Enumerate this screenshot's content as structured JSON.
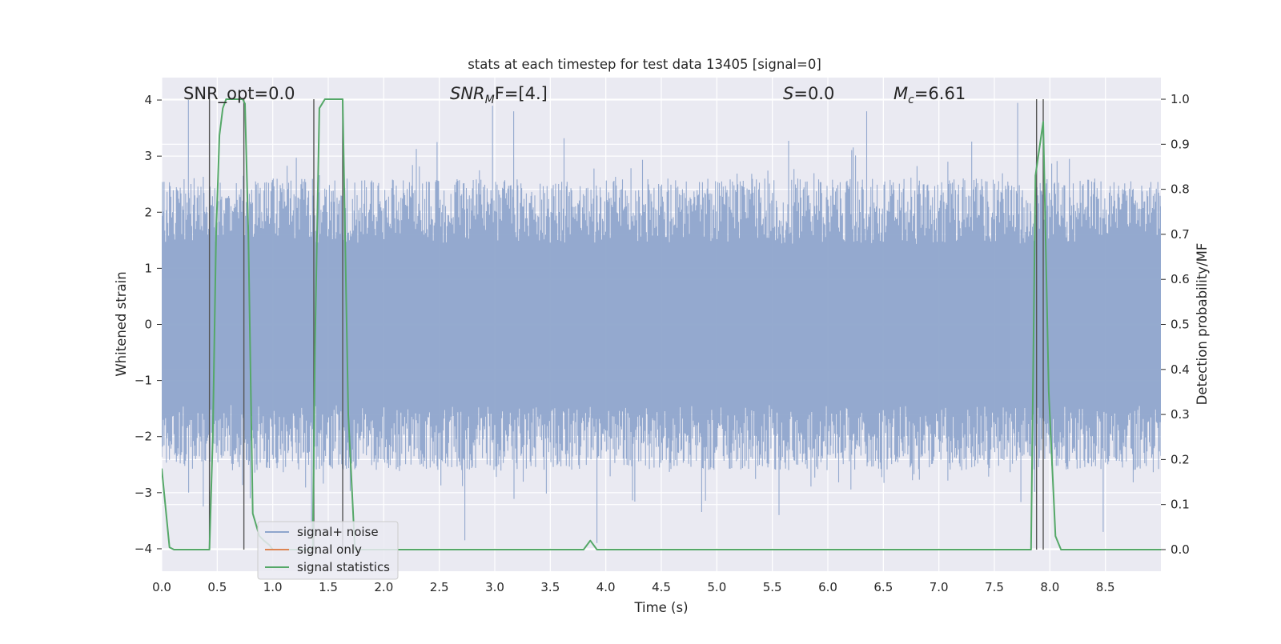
{
  "chart_data": {
    "type": "line",
    "title": "stats at each timestep for test data 13405 [signal=0]",
    "xlabel": "Time (s)",
    "ylabel": "Whitened strain",
    "y2label": "Detection probability/MF",
    "xlim": [
      0.0,
      9.0
    ],
    "ylim": [
      -4.4,
      4.4
    ],
    "y2lim": [
      -0.048,
      1.048
    ],
    "xticks": [
      "0.0",
      "0.5",
      "1.0",
      "1.5",
      "2.0",
      "2.5",
      "3.0",
      "3.5",
      "4.0",
      "4.5",
      "5.0",
      "5.5",
      "6.0",
      "6.5",
      "7.0",
      "7.5",
      "8.0",
      "8.5"
    ],
    "yticks": [
      "−4",
      "−3",
      "−2",
      "−1",
      "0",
      "1",
      "2",
      "3",
      "4"
    ],
    "y2ticks": [
      "0.0",
      "0.1",
      "0.2",
      "0.3",
      "0.4",
      "0.5",
      "0.6",
      "0.7",
      "0.8",
      "0.9",
      "1.0"
    ],
    "grid": true,
    "legend_position": "lower-left",
    "annotations": {
      "snr_opt": "SNR_opt=0.0",
      "snr_mf_main": "SNR",
      "snr_mf_sub": "M",
      "snr_mf_rest": "F=[4.]",
      "s_main": "S",
      "s_rest": "=0.0",
      "mc_main": "M",
      "mc_sub": "c",
      "mc_rest": "=6.61"
    },
    "series": [
      {
        "name": "signal+ noise",
        "color": "#8fa5cc",
        "style": "noise band (whitened strain, sample-level noise between about -2.6 and 2.6, peaks near ±4)",
        "envelope_y": [
          -2.6,
          2.6
        ],
        "peaks": [
          {
            "x": 0.24,
            "y": 4.0
          },
          {
            "x": 1.35,
            "y": -3.8
          },
          {
            "x": 2.73,
            "y": -3.85
          },
          {
            "x": 2.98,
            "y": 3.9
          },
          {
            "x": 3.17,
            "y": 3.8
          },
          {
            "x": 3.92,
            "y": -3.9
          },
          {
            "x": 5.56,
            "y": -3.4
          },
          {
            "x": 6.35,
            "y": 3.8
          },
          {
            "x": 7.71,
            "y": 3.95
          },
          {
            "x": 8.48,
            "y": -3.7
          }
        ]
      },
      {
        "name": "signal only",
        "color": "#dd8452",
        "x": [
          0.0,
          9.0
        ],
        "y": [
          0.0,
          0.0
        ]
      },
      {
        "name": "signal statistics",
        "color": "#55a868",
        "axis": "right",
        "x": [
          0.0,
          0.07,
          0.11,
          0.43,
          0.46,
          0.49,
          0.52,
          0.55,
          0.58,
          0.73,
          0.75,
          0.78,
          0.82,
          0.88,
          0.92,
          0.97,
          1.0,
          1.36,
          1.38,
          1.42,
          1.47,
          1.55,
          1.63,
          1.68,
          1.74,
          3.8,
          3.86,
          3.92,
          7.83,
          7.87,
          7.94,
          7.99,
          8.05,
          8.1,
          9.0
        ],
        "y": [
          0.18,
          0.005,
          0.0,
          0.0,
          0.25,
          0.7,
          0.92,
          0.98,
          1.0,
          1.0,
          0.99,
          0.7,
          0.08,
          0.03,
          0.02,
          0.01,
          0.0,
          0.0,
          0.45,
          0.98,
          1.0,
          1.0,
          1.0,
          0.3,
          0.0,
          0.0,
          0.02,
          0.0,
          0.0,
          0.83,
          0.95,
          0.35,
          0.03,
          0.0,
          0.0
        ]
      }
    ],
    "vertical_lines": {
      "color": "#555555",
      "x": [
        0.43,
        0.74,
        1.37,
        1.63,
        7.88,
        7.94
      ]
    }
  }
}
